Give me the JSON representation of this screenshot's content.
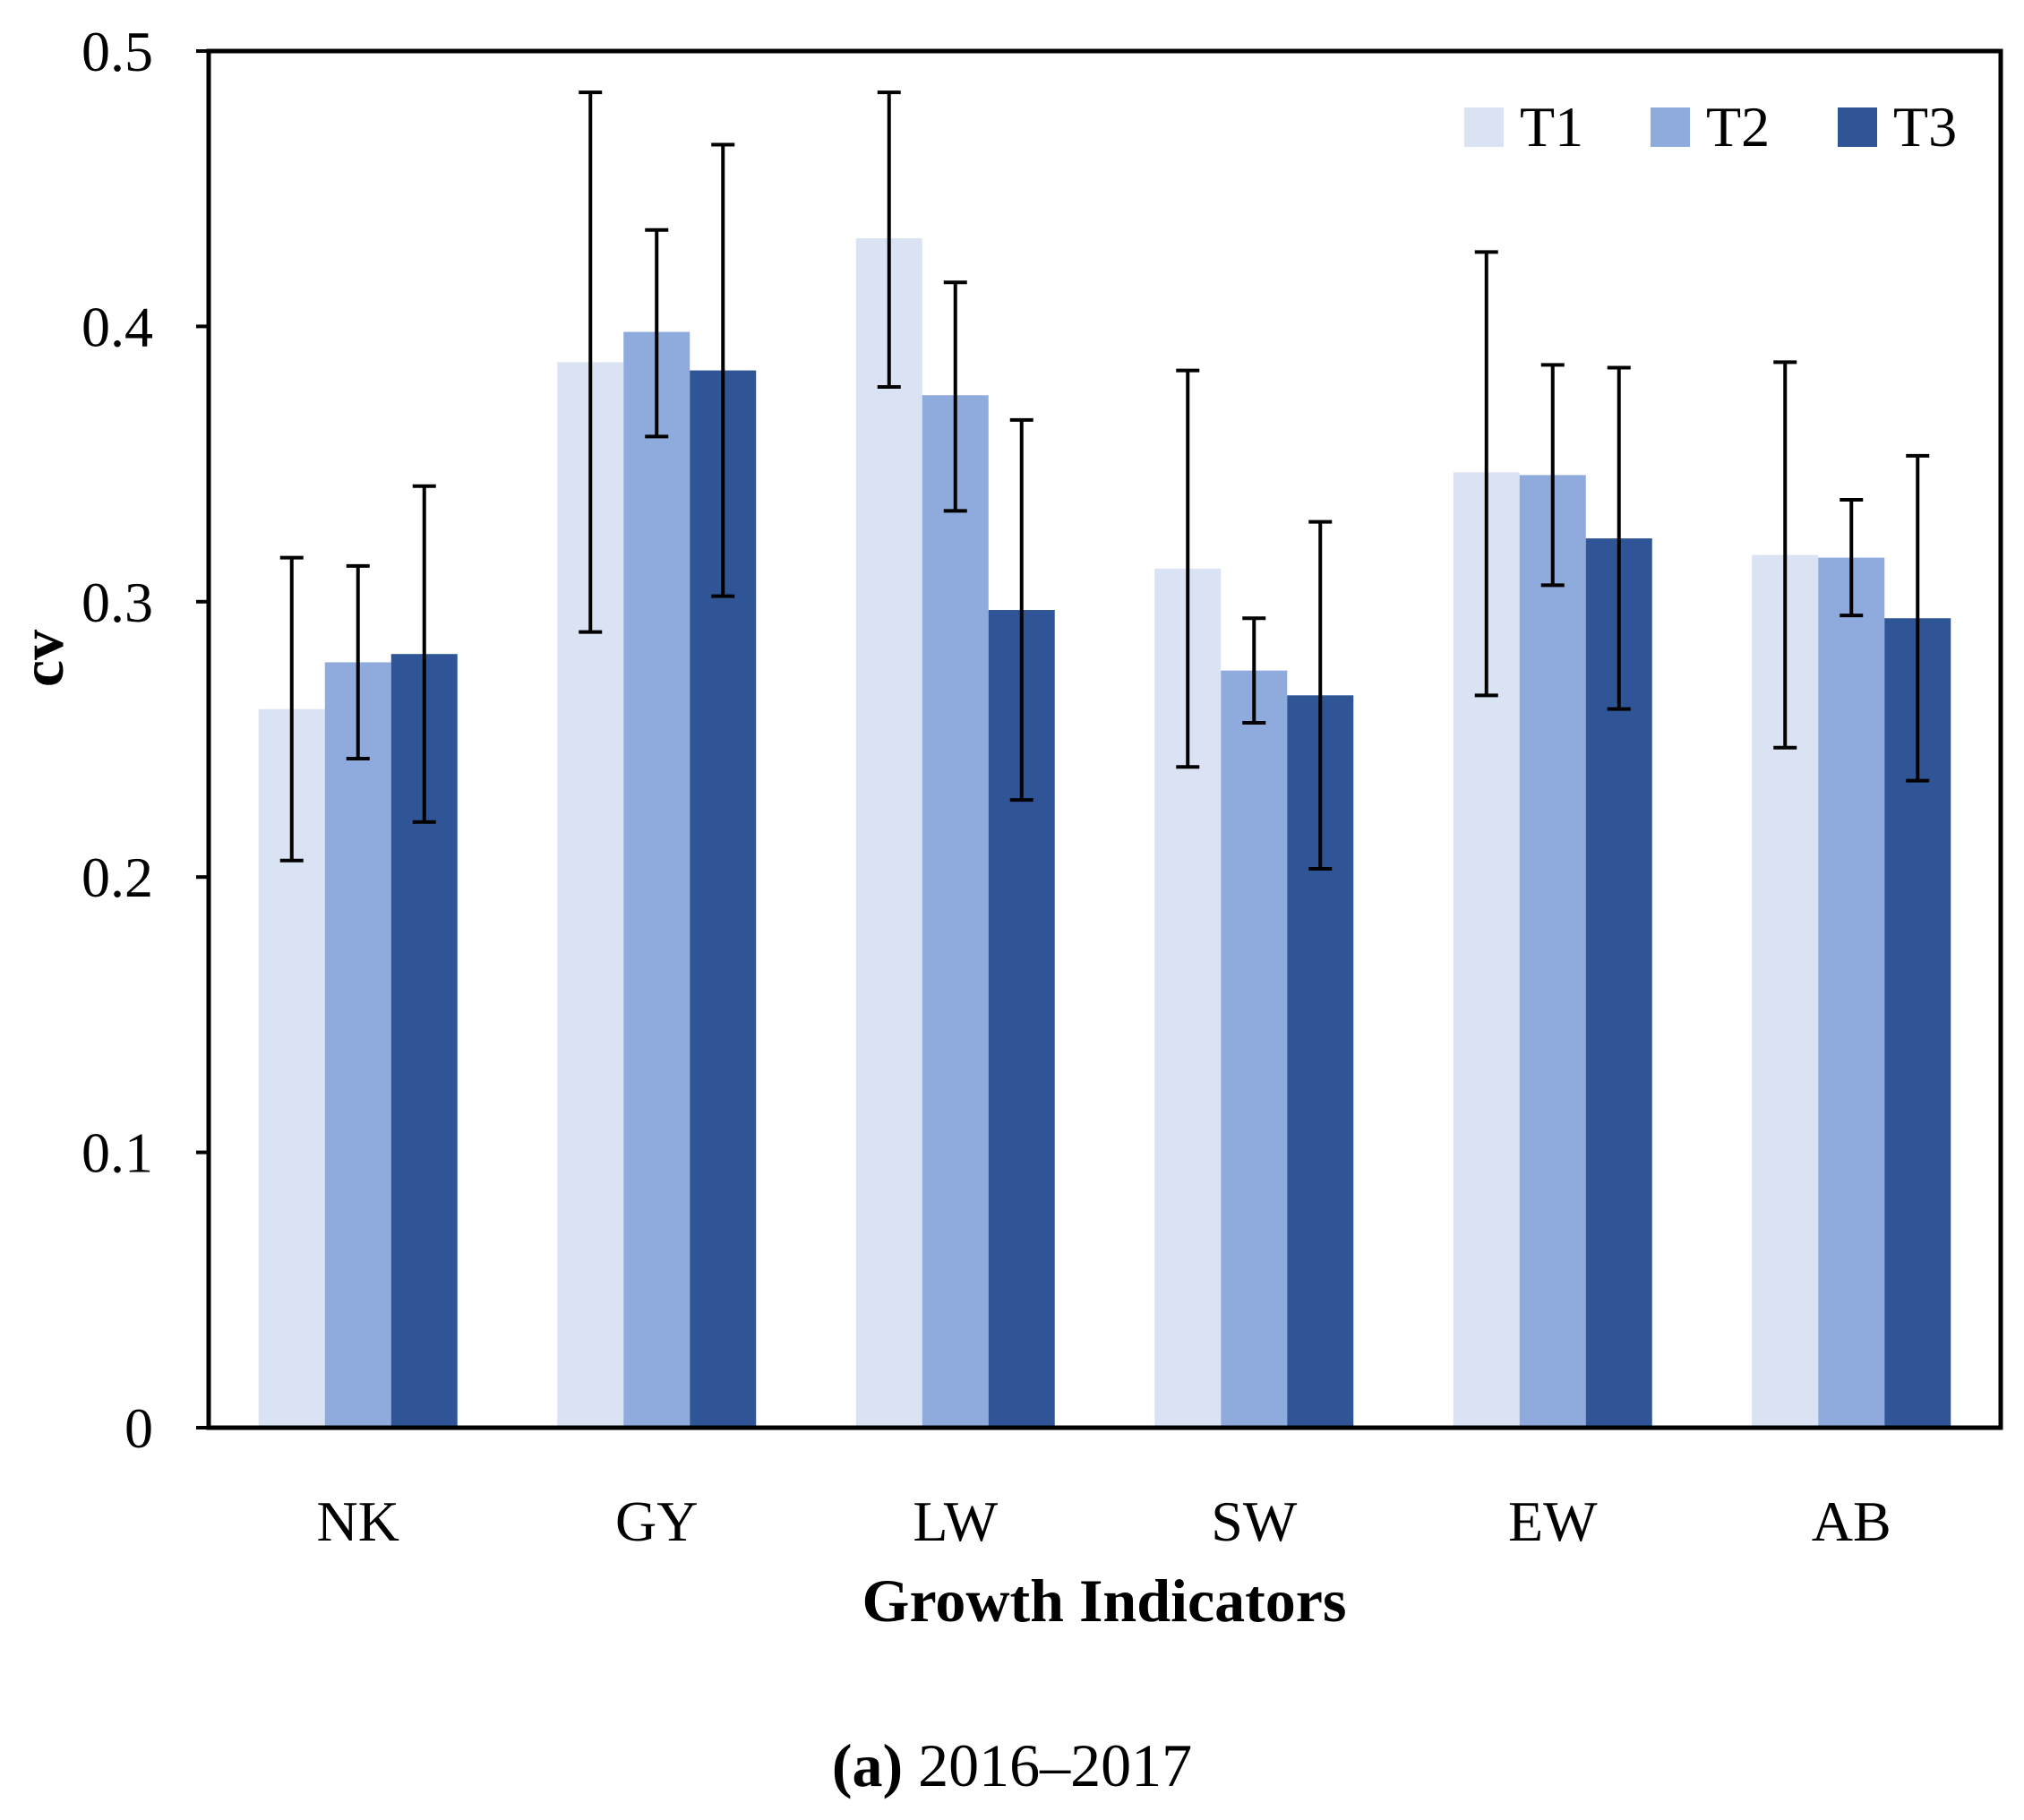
{
  "chart_data": {
    "type": "bar",
    "title": "",
    "xlabel": "Growth Indicators",
    "ylabel": "cv",
    "ylim": [
      0,
      0.5
    ],
    "yticks": [
      0,
      0.1,
      0.2,
      0.3,
      0.4,
      0.5
    ],
    "ytick_labels": [
      "0",
      "0.1",
      "0.2",
      "0.3",
      "0.4",
      "0.5"
    ],
    "grid": false,
    "legend_position": "top-right",
    "categories": [
      "NK",
      "GY",
      "LW",
      "SW",
      "EW",
      "AB"
    ],
    "series": [
      {
        "name": "T1",
        "color": "#dae3f3",
        "values": [
          0.261,
          0.387,
          0.432,
          0.312,
          0.347,
          0.317
        ],
        "error_low": [
          0.206,
          0.289,
          0.378,
          0.24,
          0.266,
          0.247
        ],
        "error_high": [
          0.316,
          0.485,
          0.485,
          0.384,
          0.427,
          0.387
        ]
      },
      {
        "name": "T2",
        "color": "#8faadc",
        "values": [
          0.278,
          0.398,
          0.375,
          0.275,
          0.346,
          0.316
        ],
        "error_low": [
          0.243,
          0.36,
          0.333,
          0.256,
          0.306,
          0.295
        ],
        "error_high": [
          0.313,
          0.435,
          0.416,
          0.294,
          0.386,
          0.337
        ]
      },
      {
        "name": "T3",
        "color": "#2f5597",
        "values": [
          0.281,
          0.384,
          0.297,
          0.266,
          0.323,
          0.294
        ],
        "error_low": [
          0.22,
          0.302,
          0.228,
          0.203,
          0.261,
          0.235
        ],
        "error_high": [
          0.342,
          0.466,
          0.366,
          0.329,
          0.385,
          0.353
        ]
      }
    ]
  },
  "caption": {
    "label": "(a)",
    "text": " 2016–2017"
  }
}
